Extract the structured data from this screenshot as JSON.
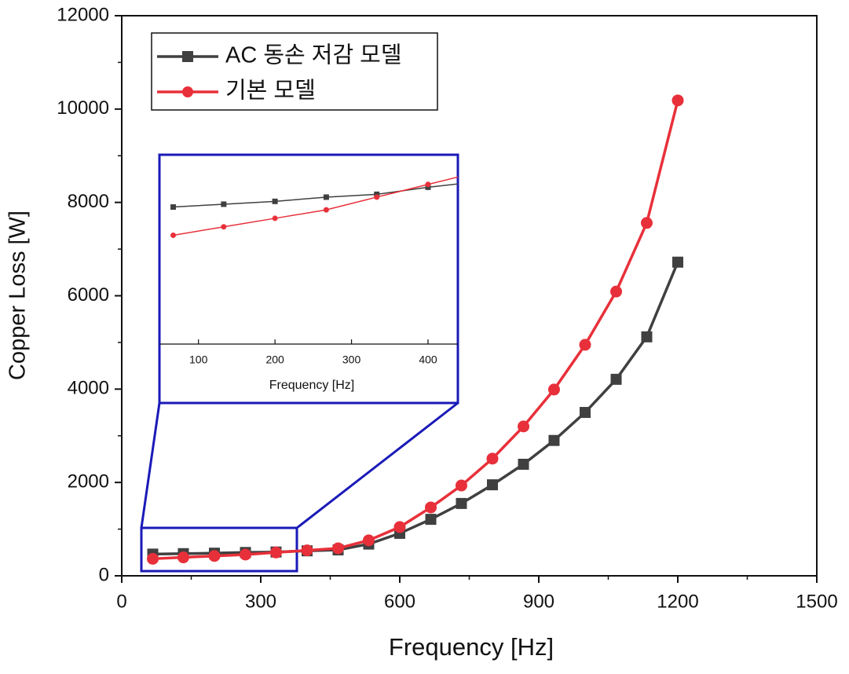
{
  "chart_data": [
    {
      "type": "line",
      "xlabel": "Frequency [Hz]",
      "ylabel": "Copper Loss [W]",
      "x": [
        67,
        133,
        200,
        267,
        333,
        400,
        467,
        533,
        600,
        667,
        733,
        800,
        867,
        933,
        1000,
        1067,
        1133,
        1200
      ],
      "series": [
        {
          "name": "AC 동손 저감 모델",
          "color": "#404040",
          "marker": "square",
          "values": [
            465,
            475,
            485,
            500,
            510,
            535,
            555,
            680,
            910,
            1210,
            1550,
            1950,
            2390,
            2900,
            3500,
            4210,
            5120,
            6720
          ]
        },
        {
          "name": "기본 모델",
          "color": "#e8303a",
          "marker": "circle",
          "values": [
            365,
            395,
            425,
            455,
            500,
            545,
            590,
            760,
            1045,
            1465,
            1935,
            2510,
            3200,
            3990,
            4950,
            6090,
            7560,
            10185
          ]
        }
      ],
      "xlim": [
        0,
        1500
      ],
      "xticks": [
        0,
        300,
        600,
        900,
        1200,
        1500
      ],
      "ylim": [
        0,
        12000
      ],
      "yticks": [
        0,
        2000,
        4000,
        6000,
        8000,
        10000,
        12000
      ],
      "legend": "upper left"
    },
    {
      "type": "line",
      "xlabel": "Frequency [Hz]",
      "xlim": [
        49,
        439
      ],
      "xticks": [
        100,
        200,
        300,
        400
      ],
      "ylim": [
        -20,
        650
      ]
    }
  ]
}
